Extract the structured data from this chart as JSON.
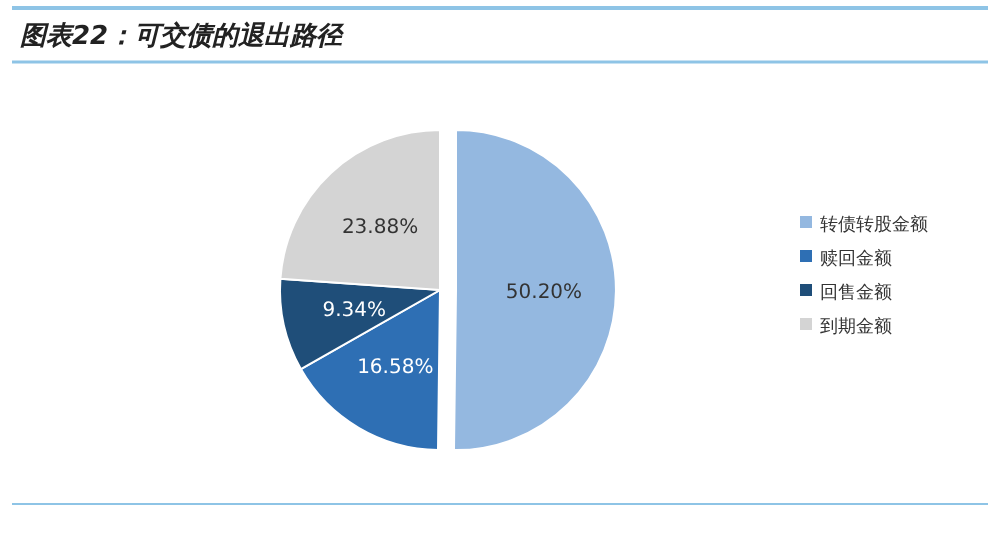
{
  "chart_data": {
    "type": "pie",
    "title": "图表22：可交债的退出路径",
    "categories": [
      "转债转股金额",
      "赎回金额",
      "回售金额",
      "到期金额"
    ],
    "values": [
      50.2,
      16.58,
      9.34,
      23.88
    ],
    "colors": [
      "#94b8e0",
      "#2e6fb4",
      "#1f4e79",
      "#d4d4d4"
    ],
    "value_labels": [
      "50.20%",
      "16.58%",
      "9.34%",
      "23.88%"
    ],
    "legend": "right"
  }
}
